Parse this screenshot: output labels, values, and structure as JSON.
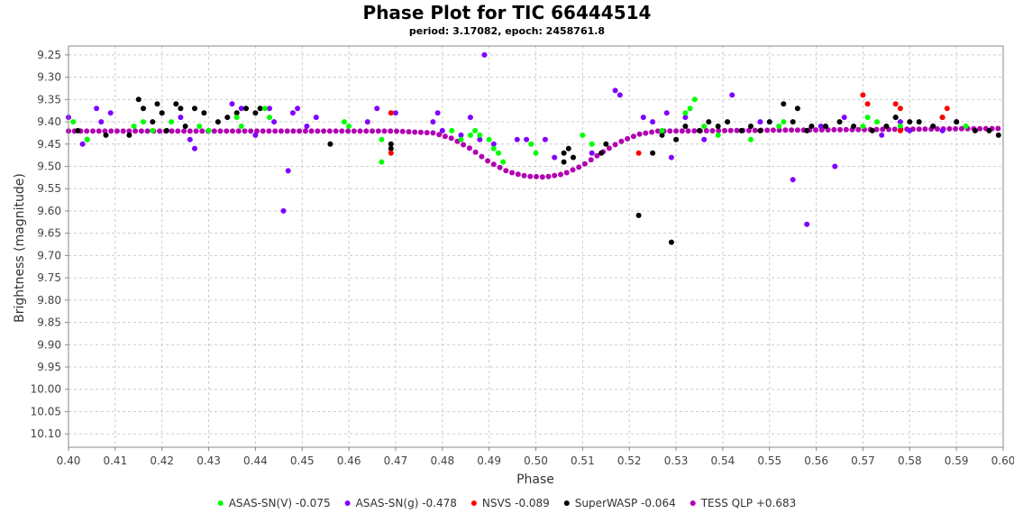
{
  "chart_data": {
    "type": "scatter",
    "title": "Phase Plot for TIC 66444514",
    "subtitle": "period: 3.17082, epoch: 2458761.8",
    "xlabel": "Phase",
    "ylabel": "Brightness (magnitude)",
    "xlim": [
      0.4,
      0.6
    ],
    "ylim": [
      9.23,
      10.13
    ],
    "y_inverted": true,
    "x_ticks": [
      "0.40",
      "0.41",
      "0.42",
      "0.43",
      "0.44",
      "0.45",
      "0.46",
      "0.47",
      "0.48",
      "0.49",
      "0.50",
      "0.51",
      "0.52",
      "0.53",
      "0.54",
      "0.55",
      "0.56",
      "0.57",
      "0.58",
      "0.59",
      "0.60"
    ],
    "y_ticks": [
      "9.25",
      "9.30",
      "9.35",
      "9.40",
      "9.45",
      "9.50",
      "9.55",
      "9.60",
      "9.65",
      "9.70",
      "9.75",
      "9.80",
      "9.85",
      "9.90",
      "9.95",
      "10.00",
      "10.05",
      "10.10"
    ],
    "grid": true,
    "legend_position": "bottom",
    "series": [
      {
        "name": "ASAS-SN(V) -0.075",
        "color": "#00ff00",
        "points": [
          [
            0.401,
            9.4
          ],
          [
            0.404,
            9.44
          ],
          [
            0.414,
            9.41
          ],
          [
            0.416,
            9.4
          ],
          [
            0.418,
            9.42
          ],
          [
            0.422,
            9.4
          ],
          [
            0.428,
            9.41
          ],
          [
            0.43,
            9.42
          ],
          [
            0.436,
            9.39
          ],
          [
            0.437,
            9.41
          ],
          [
            0.442,
            9.37
          ],
          [
            0.443,
            9.39
          ],
          [
            0.459,
            9.4
          ],
          [
            0.46,
            9.41
          ],
          [
            0.467,
            9.44
          ],
          [
            0.467,
            9.49
          ],
          [
            0.482,
            9.42
          ],
          [
            0.484,
            9.44
          ],
          [
            0.486,
            9.43
          ],
          [
            0.487,
            9.42
          ],
          [
            0.488,
            9.43
          ],
          [
            0.49,
            9.44
          ],
          [
            0.491,
            9.46
          ],
          [
            0.492,
            9.47
          ],
          [
            0.493,
            9.49
          ],
          [
            0.499,
            9.45
          ],
          [
            0.5,
            9.47
          ],
          [
            0.51,
            9.43
          ],
          [
            0.512,
            9.45
          ],
          [
            0.527,
            9.42
          ],
          [
            0.532,
            9.38
          ],
          [
            0.533,
            9.37
          ],
          [
            0.534,
            9.35
          ],
          [
            0.536,
            9.41
          ],
          [
            0.539,
            9.43
          ],
          [
            0.546,
            9.44
          ],
          [
            0.552,
            9.41
          ],
          [
            0.553,
            9.4
          ],
          [
            0.57,
            9.41
          ],
          [
            0.571,
            9.39
          ],
          [
            0.573,
            9.4
          ],
          [
            0.578,
            9.41
          ],
          [
            0.592,
            9.41
          ]
        ]
      },
      {
        "name": "ASAS-SN(g) -0.478",
        "color": "#7f00ff",
        "points": [
          [
            0.4,
            9.39
          ],
          [
            0.403,
            9.45
          ],
          [
            0.406,
            9.37
          ],
          [
            0.407,
            9.4
          ],
          [
            0.409,
            9.38
          ],
          [
            0.42,
            9.38
          ],
          [
            0.424,
            9.39
          ],
          [
            0.426,
            9.44
          ],
          [
            0.427,
            9.46
          ],
          [
            0.43,
            9.42
          ],
          [
            0.435,
            9.36
          ],
          [
            0.437,
            9.37
          ],
          [
            0.44,
            9.43
          ],
          [
            0.443,
            9.37
          ],
          [
            0.444,
            9.4
          ],
          [
            0.446,
            9.6
          ],
          [
            0.447,
            9.51
          ],
          [
            0.448,
            9.38
          ],
          [
            0.449,
            9.37
          ],
          [
            0.451,
            9.41
          ],
          [
            0.453,
            9.39
          ],
          [
            0.464,
            9.4
          ],
          [
            0.466,
            9.37
          ],
          [
            0.47,
            9.38
          ],
          [
            0.478,
            9.4
          ],
          [
            0.479,
            9.38
          ],
          [
            0.48,
            9.42
          ],
          [
            0.484,
            9.43
          ],
          [
            0.486,
            9.39
          ],
          [
            0.488,
            9.44
          ],
          [
            0.489,
            9.25
          ],
          [
            0.491,
            9.45
          ],
          [
            0.496,
            9.44
          ],
          [
            0.498,
            9.44
          ],
          [
            0.502,
            9.44
          ],
          [
            0.504,
            9.48
          ],
          [
            0.512,
            9.47
          ],
          [
            0.517,
            9.33
          ],
          [
            0.518,
            9.34
          ],
          [
            0.523,
            9.39
          ],
          [
            0.525,
            9.4
          ],
          [
            0.528,
            9.38
          ],
          [
            0.529,
            9.48
          ],
          [
            0.532,
            9.39
          ],
          [
            0.536,
            9.44
          ],
          [
            0.542,
            9.34
          ],
          [
            0.548,
            9.4
          ],
          [
            0.555,
            9.53
          ],
          [
            0.558,
            9.63
          ],
          [
            0.561,
            9.41
          ],
          [
            0.564,
            9.5
          ],
          [
            0.566,
            9.39
          ],
          [
            0.574,
            9.43
          ],
          [
            0.577,
            9.39
          ],
          [
            0.578,
            9.4
          ],
          [
            0.58,
            9.42
          ],
          [
            0.585,
            9.41
          ],
          [
            0.587,
            9.42
          ],
          [
            0.59,
            9.4
          ]
        ]
      },
      {
        "name": "NSVS -0.089",
        "color": "#ff0000",
        "points": [
          [
            0.469,
            9.38
          ],
          [
            0.469,
            9.47
          ],
          [
            0.522,
            9.47
          ],
          [
            0.57,
            9.34
          ],
          [
            0.571,
            9.36
          ],
          [
            0.577,
            9.36
          ],
          [
            0.578,
            9.37
          ],
          [
            0.587,
            9.39
          ],
          [
            0.588,
            9.37
          ],
          [
            0.578,
            9.42
          ]
        ]
      },
      {
        "name": "SuperWASP -0.064",
        "color": "#000000",
        "points": [
          [
            0.402,
            9.42
          ],
          [
            0.404,
            9.44
          ],
          [
            0.408,
            9.43
          ],
          [
            0.413,
            9.43
          ],
          [
            0.415,
            9.35
          ],
          [
            0.416,
            9.37
          ],
          [
            0.418,
            9.4
          ],
          [
            0.419,
            9.36
          ],
          [
            0.42,
            9.38
          ],
          [
            0.421,
            9.42
          ],
          [
            0.423,
            9.36
          ],
          [
            0.424,
            9.37
          ],
          [
            0.425,
            9.41
          ],
          [
            0.427,
            9.37
          ],
          [
            0.429,
            9.38
          ],
          [
            0.432,
            9.4
          ],
          [
            0.434,
            9.39
          ],
          [
            0.436,
            9.38
          ],
          [
            0.438,
            9.37
          ],
          [
            0.44,
            9.38
          ],
          [
            0.441,
            9.37
          ],
          [
            0.456,
            9.45
          ],
          [
            0.469,
            9.45
          ],
          [
            0.469,
            9.46
          ],
          [
            0.506,
            9.49
          ],
          [
            0.506,
            9.47
          ],
          [
            0.507,
            9.46
          ],
          [
            0.508,
            9.48
          ],
          [
            0.514,
            9.47
          ],
          [
            0.515,
            9.45
          ],
          [
            0.522,
            9.61
          ],
          [
            0.525,
            9.47
          ],
          [
            0.527,
            9.43
          ],
          [
            0.529,
            9.67
          ],
          [
            0.53,
            9.44
          ],
          [
            0.532,
            9.41
          ],
          [
            0.535,
            9.42
          ],
          [
            0.537,
            9.4
          ],
          [
            0.539,
            9.41
          ],
          [
            0.541,
            9.4
          ],
          [
            0.544,
            9.42
          ],
          [
            0.546,
            9.41
          ],
          [
            0.548,
            9.42
          ],
          [
            0.55,
            9.4
          ],
          [
            0.553,
            9.36
          ],
          [
            0.555,
            9.4
          ],
          [
            0.556,
            9.37
          ],
          [
            0.558,
            9.42
          ],
          [
            0.559,
            9.41
          ],
          [
            0.562,
            9.41
          ],
          [
            0.565,
            9.4
          ],
          [
            0.568,
            9.41
          ],
          [
            0.572,
            9.42
          ],
          [
            0.575,
            9.41
          ],
          [
            0.577,
            9.39
          ],
          [
            0.58,
            9.4
          ],
          [
            0.582,
            9.4
          ],
          [
            0.585,
            9.41
          ],
          [
            0.587,
            9.39
          ],
          [
            0.59,
            9.4
          ],
          [
            0.594,
            9.42
          ],
          [
            0.597,
            9.42
          ],
          [
            0.599,
            9.43
          ]
        ]
      },
      {
        "name": "TESS QLP +0.683",
        "color": "#b100b1",
        "curve": [
          [
            0.4,
            9.421
          ],
          [
            0.47,
            9.421
          ],
          [
            0.478,
            9.425
          ],
          [
            0.482,
            9.437
          ],
          [
            0.486,
            9.46
          ],
          [
            0.49,
            9.49
          ],
          [
            0.494,
            9.512
          ],
          [
            0.498,
            9.522
          ],
          [
            0.502,
            9.524
          ],
          [
            0.506,
            9.517
          ],
          [
            0.51,
            9.498
          ],
          [
            0.514,
            9.47
          ],
          [
            0.518,
            9.445
          ],
          [
            0.522,
            9.428
          ],
          [
            0.526,
            9.421
          ],
          [
            0.6,
            9.415
          ]
        ]
      }
    ]
  }
}
